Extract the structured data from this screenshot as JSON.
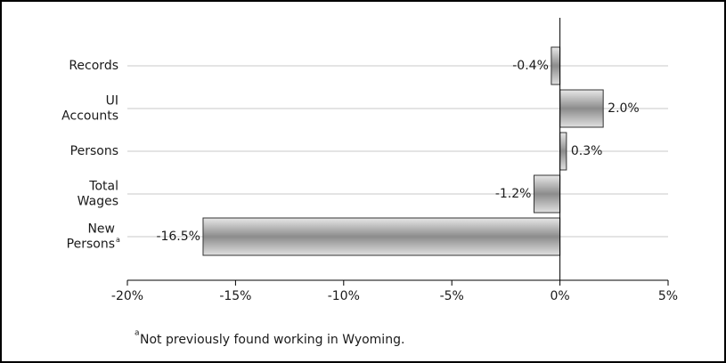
{
  "chart_data": {
    "type": "bar",
    "orientation": "horizontal",
    "categories": [
      "Records",
      "UI Accounts",
      "Persons",
      "Total Wages",
      "New Persons"
    ],
    "category_marker": "a",
    "values": [
      -0.4,
      2.0,
      0.3,
      -1.2,
      -16.5
    ],
    "value_labels": [
      "-0.4%",
      "2.0%",
      "0.3%",
      "-1.2%",
      "-16.5%"
    ],
    "color": "#9a9a9a",
    "xlim": [
      -20,
      5
    ],
    "xticks": [
      {
        "value": -20,
        "label": "-20%"
      },
      {
        "value": -15,
        "label": "-15%"
      },
      {
        "value": -10,
        "label": "-10%"
      },
      {
        "value": -5,
        "label": "-5%"
      },
      {
        "value": 0,
        "label": "0%"
      },
      {
        "value": 5,
        "label": "5%"
      }
    ],
    "grid": true,
    "footnote": {
      "marker": "a",
      "text": "Not previously found working in Wyoming."
    }
  }
}
